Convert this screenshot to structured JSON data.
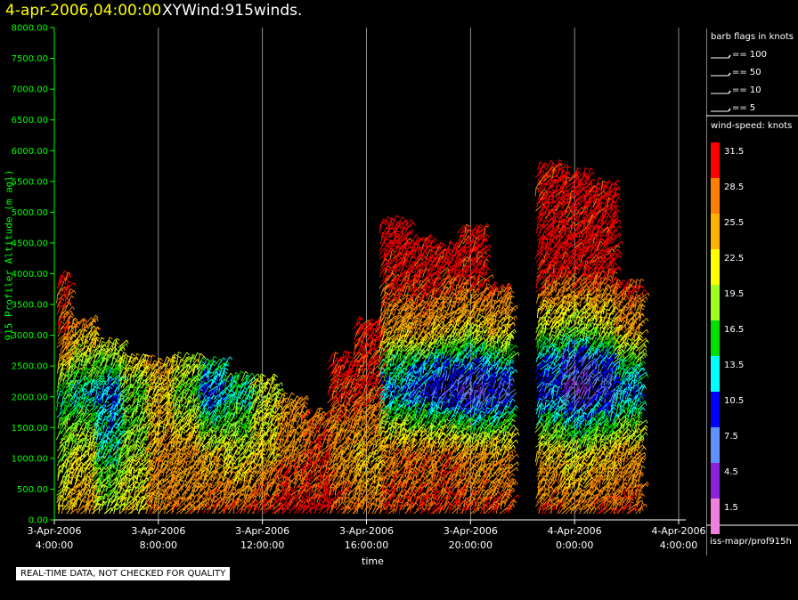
{
  "header": {
    "datetime": "4-apr-2006,04:00:00",
    "product": "XYWind:915winds."
  },
  "note": "REAL-TIME DATA, NOT CHECKED FOR QUALITY",
  "source": "iss-mapr/prof915h",
  "legend": {
    "barb_title": "barb flags in knots",
    "barbs": [
      "== 100",
      "== 50",
      "== 10",
      "== 5"
    ],
    "speed_title": "wind-speed: knots",
    "speed_levels": [
      {
        "label": "31.5",
        "color": "#ff0000"
      },
      {
        "label": "28.5",
        "color": "#ff8000"
      },
      {
        "label": "25.5",
        "color": "#ffb000"
      },
      {
        "label": "22.5",
        "color": "#ffff00"
      },
      {
        "label": "19.5",
        "color": "#a0ff20"
      },
      {
        "label": "16.5",
        "color": "#00e000"
      },
      {
        "label": "13.5",
        "color": "#00ffff"
      },
      {
        "label": "10.5",
        "color": "#0000ff"
      },
      {
        "label": "7.5",
        "color": "#6090ff"
      },
      {
        "label": "4.5",
        "color": "#9020e0"
      },
      {
        "label": "1.5",
        "color": "#f080e0"
      }
    ]
  },
  "chart_data": {
    "type": "scatter",
    "title": "XYWind:915winds.",
    "xlabel": "time",
    "ylabel": "915 Profiler Altitude (m agl)",
    "ylim": [
      0,
      8000
    ],
    "y_ticks": [
      "0.00",
      "500.00",
      "1000.00",
      "1500.00",
      "2000.00",
      "2500.00",
      "3000.00",
      "3500.00",
      "4000.00",
      "4500.00",
      "5000.00",
      "5500.00",
      "6000.00",
      "6500.00",
      "7000.00",
      "7500.00",
      "8000.00"
    ],
    "x_ticks": [
      {
        "date": "3-Apr-2006",
        "time": "4:00:00"
      },
      {
        "date": "3-Apr-2006",
        "time": "8:00:00"
      },
      {
        "date": "3-Apr-2006",
        "time": "12:00:00"
      },
      {
        "date": "3-Apr-2006",
        "time": "16:00:00"
      },
      {
        "date": "3-Apr-2006",
        "time": "20:00:00"
      },
      {
        "date": "4-Apr-2006",
        "time": "0:00:00"
      },
      {
        "date": "4-Apr-2006",
        "time": "4:00:00"
      }
    ],
    "x_range_hours": [
      0,
      24
    ],
    "grid": "vertical",
    "speed_units": "knots",
    "series": [
      {
        "hour": 0.0,
        "top": 3900,
        "profile": [
          [
            0,
            24
          ],
          [
            1000,
            20
          ],
          [
            2000,
            16
          ],
          [
            2500,
            24
          ],
          [
            3000,
            30
          ],
          [
            4000,
            30
          ]
        ]
      },
      {
        "hour": 1.0,
        "top": 3200,
        "profile": [
          [
            0,
            26
          ],
          [
            1000,
            22
          ],
          [
            2000,
            14
          ],
          [
            2500,
            20
          ],
          [
            3200,
            28
          ]
        ]
      },
      {
        "hour": 2.0,
        "top": 2800,
        "profile": [
          [
            0,
            22
          ],
          [
            1000,
            16
          ],
          [
            2000,
            12
          ],
          [
            2800,
            22
          ]
        ]
      },
      {
        "hour": 3.0,
        "top": 2600,
        "profile": [
          [
            0,
            24
          ],
          [
            1000,
            20
          ],
          [
            2000,
            18
          ],
          [
            2600,
            24
          ]
        ]
      },
      {
        "hour": 4.0,
        "top": 2500,
        "profile": [
          [
            0,
            28
          ],
          [
            1000,
            26
          ],
          [
            2000,
            24
          ],
          [
            2500,
            26
          ]
        ]
      },
      {
        "hour": 5.0,
        "top": 2600,
        "profile": [
          [
            0,
            28
          ],
          [
            1000,
            26
          ],
          [
            2000,
            18
          ],
          [
            2600,
            22
          ]
        ]
      },
      {
        "hour": 6.0,
        "top": 2500,
        "profile": [
          [
            0,
            30
          ],
          [
            1000,
            24
          ],
          [
            2000,
            10
          ],
          [
            2500,
            16
          ]
        ]
      },
      {
        "hour": 7.0,
        "top": 2300,
        "profile": [
          [
            0,
            30
          ],
          [
            1000,
            22
          ],
          [
            2000,
            14
          ],
          [
            2300,
            18
          ]
        ]
      },
      {
        "hour": 8.0,
        "top": 2200,
        "profile": [
          [
            0,
            32
          ],
          [
            1000,
            24
          ],
          [
            2000,
            20
          ],
          [
            2200,
            22
          ]
        ]
      },
      {
        "hour": 9.0,
        "top": 1900,
        "profile": [
          [
            0,
            32
          ],
          [
            1000,
            28
          ],
          [
            1900,
            26
          ]
        ]
      },
      {
        "hour": 10.0,
        "top": 1700,
        "profile": [
          [
            0,
            32
          ],
          [
            1000,
            30
          ],
          [
            1700,
            28
          ]
        ]
      },
      {
        "hour": 11.0,
        "top": 2600,
        "profile": [
          [
            0,
            30
          ],
          [
            1000,
            26
          ],
          [
            2000,
            30
          ],
          [
            2600,
            32
          ]
        ]
      },
      {
        "hour": 12.0,
        "top": 3200,
        "profile": [
          [
            0,
            28
          ],
          [
            1000,
            24
          ],
          [
            2000,
            30
          ],
          [
            3200,
            32
          ]
        ]
      },
      {
        "hour": 13.0,
        "top": 4800,
        "profile": [
          [
            0,
            30
          ],
          [
            1000,
            28
          ],
          [
            2000,
            12
          ],
          [
            2500,
            16
          ],
          [
            3000,
            26
          ],
          [
            4000,
            32
          ],
          [
            4800,
            32
          ]
        ]
      },
      {
        "hour": 14.0,
        "top": 4500,
        "profile": [
          [
            0,
            30
          ],
          [
            1000,
            28
          ],
          [
            2000,
            10
          ],
          [
            2500,
            14
          ],
          [
            3000,
            26
          ],
          [
            4000,
            32
          ],
          [
            4500,
            32
          ]
        ]
      },
      {
        "hour": 15.0,
        "top": 4400,
        "profile": [
          [
            0,
            32
          ],
          [
            1000,
            28
          ],
          [
            2000,
            8
          ],
          [
            2500,
            12
          ],
          [
            3000,
            24
          ],
          [
            4000,
            32
          ],
          [
            4400,
            32
          ]
        ]
      },
      {
        "hour": 16.0,
        "top": 4700,
        "profile": [
          [
            0,
            30
          ],
          [
            1000,
            26
          ],
          [
            2000,
            6
          ],
          [
            2500,
            12
          ],
          [
            3000,
            22
          ],
          [
            4000,
            32
          ],
          [
            4700,
            32
          ]
        ]
      },
      {
        "hour": 17.0,
        "top": 3700,
        "profile": [
          [
            0,
            30
          ],
          [
            1000,
            26
          ],
          [
            2000,
            8
          ],
          [
            2500,
            14
          ],
          [
            3000,
            24
          ],
          [
            3700,
            30
          ]
        ]
      },
      {
        "hour": 19.0,
        "top": 5700,
        "profile": [
          [
            0,
            30
          ],
          [
            1000,
            24
          ],
          [
            2000,
            10
          ],
          [
            2500,
            12
          ],
          [
            3000,
            20
          ],
          [
            4000,
            32
          ],
          [
            5700,
            32
          ]
        ]
      },
      {
        "hour": 20.0,
        "top": 5600,
        "profile": [
          [
            0,
            28
          ],
          [
            1000,
            22
          ],
          [
            2000,
            6
          ],
          [
            2500,
            8
          ],
          [
            3000,
            18
          ],
          [
            4000,
            32
          ],
          [
            5600,
            32
          ]
        ]
      },
      {
        "hour": 21.0,
        "top": 5400,
        "profile": [
          [
            0,
            30
          ],
          [
            1000,
            24
          ],
          [
            2000,
            8
          ],
          [
            2500,
            10
          ],
          [
            3000,
            20
          ],
          [
            4000,
            32
          ],
          [
            5400,
            32
          ]
        ]
      },
      {
        "hour": 22.0,
        "top": 3800,
        "profile": [
          [
            0,
            30
          ],
          [
            1000,
            26
          ],
          [
            2000,
            12
          ],
          [
            2500,
            16
          ],
          [
            3000,
            26
          ],
          [
            3800,
            30
          ]
        ]
      }
    ]
  }
}
